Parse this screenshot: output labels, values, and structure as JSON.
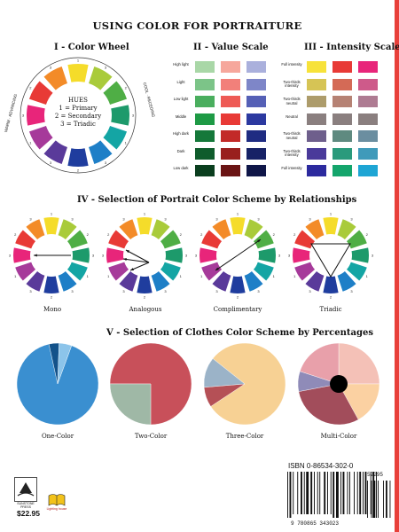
{
  "page": {
    "title": "USING COLOR FOR PORTRAITURE"
  },
  "color_wheel_section": {
    "title": "I - Color Wheel",
    "center_heading": "HUES",
    "legend": [
      "1 = Primary",
      "2 = Secondary",
      "3 = Triadic"
    ],
    "warm_label": "WARM · ADVANCING",
    "cool_label": "COOL · RECEDING",
    "numbers": [
      "1",
      "3",
      "2",
      "3",
      "1",
      "3",
      "2",
      "3",
      "1",
      "3",
      "2",
      "3"
    ],
    "hues": [
      "#f5dc2a",
      "#a9cb3a",
      "#4fae45",
      "#1d9a6b",
      "#14a5a4",
      "#1e7fc7",
      "#1f3d9e",
      "#5a3a9a",
      "#a63a9a",
      "#e8257a",
      "#e83a36",
      "#f38b28"
    ]
  },
  "value_section": {
    "title": "II - Value Scale",
    "rows": [
      "High light",
      "Light",
      "Low light",
      "Middle",
      "High dark",
      "Dark",
      "Low dark"
    ],
    "columns": [
      [
        "#a9d7a7",
        "#7cc488",
        "#4aae5e",
        "#1e9a45",
        "#15783a",
        "#0f5c2c",
        "#0a3e1e"
      ],
      [
        "#f6a79c",
        "#f2807a",
        "#ee5a55",
        "#e83a36",
        "#c22a28",
        "#991f1e",
        "#6a1414"
      ],
      [
        "#aab0dc",
        "#7e86c8",
        "#5560b6",
        "#2c39a0",
        "#1f2c82",
        "#172266",
        "#0f1648"
      ]
    ]
  },
  "intensity_section": {
    "title": "III - Intensity Scale",
    "rows": [
      "Full intensity",
      "Two-thirds intensity",
      "Two-thirds neutral",
      "Neutral",
      "Two-thirds neutral",
      "Two-thirds intensity",
      "Full intensity"
    ],
    "columns": [
      [
        "#f7e23a",
        "#d6c455",
        "#ad9c6b",
        "#8a7f7f",
        "#6e5f8c",
        "#4a3a9a",
        "#2c2a9e"
      ],
      [
        "#e83a36",
        "#d46a56",
        "#b68274",
        "#8a7f7f",
        "#5f8a80",
        "#2a9a7c",
        "#14a56c"
      ],
      [
        "#e8257a",
        "#ce5a8a",
        "#ae7b92",
        "#8a7f7f",
        "#6b8ea0",
        "#3f9aba",
        "#1ea5d4"
      ]
    ]
  },
  "relationships_section": {
    "title": "IV - Selection of Portrait Color Scheme by Relationships",
    "wheels": [
      {
        "caption": "Mono"
      },
      {
        "caption": "Analogous"
      },
      {
        "caption": "Complimentary"
      },
      {
        "caption": "Triadic"
      }
    ]
  },
  "clothes_section": {
    "title": "V - Selection of Clothes Color Scheme by Percentages",
    "pies": [
      {
        "caption": "One-Color",
        "slices": [
          {
            "value": 91,
            "color": "#3a8fd0"
          },
          {
            "value": 4,
            "color": "#13528a"
          },
          {
            "value": 5,
            "color": "#8cc4ea"
          }
        ]
      },
      {
        "caption": "Two-Color",
        "slices": [
          {
            "value": 75,
            "color": "#c8505a"
          },
          {
            "value": 25,
            "color": "#9fb8a6"
          }
        ]
      },
      {
        "caption": "Three-Color",
        "slices": [
          {
            "value": 80,
            "color": "#f7d194"
          },
          {
            "value": 8,
            "color": "#b55056"
          },
          {
            "value": 12,
            "color": "#9bb3c8"
          }
        ]
      },
      {
        "caption": "Multi-Color",
        "slices": [
          {
            "value": 25,
            "color": "#f4c1b7"
          },
          {
            "value": 17,
            "color": "#fbd1a2"
          },
          {
            "value": 30,
            "color": "#a24d5b"
          },
          {
            "value": 8,
            "color": "#8f8bb8"
          },
          {
            "value": 20,
            "color": "#e8a0aa"
          }
        ]
      }
    ]
  },
  "back_cover": {
    "isbn": "ISBN 0-86534-302-0",
    "price": "$22.95",
    "barcode_number": "9 780865 343023",
    "addon_number": "52295",
    "publisher_logo": "SUNSTONE PRESS",
    "imprint_logo": "Lighting house"
  }
}
